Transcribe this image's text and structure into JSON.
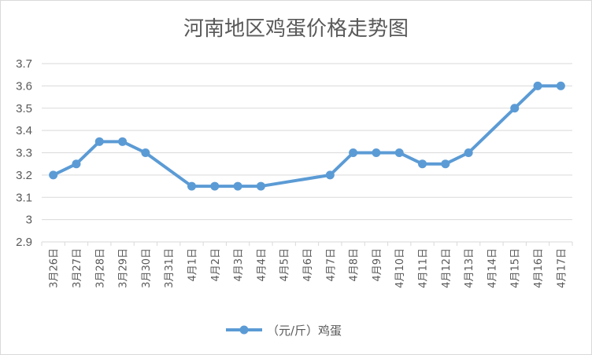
{
  "chart_data": {
    "type": "line",
    "title": "河南地区鸡蛋价格走势图",
    "categories": [
      "3月26日",
      "3月27日",
      "3月28日",
      "3月29日",
      "3月30日",
      "3月31日",
      "4月1日",
      "4月2日",
      "4月3日",
      "4月4日",
      "4月5日",
      "4月6日",
      "4月7日",
      "4月8日",
      "4月9日",
      "4月10日",
      "4月11日",
      "4月12日",
      "4月13日",
      "4月14日",
      "4月15日",
      "4月16日",
      "4月17日"
    ],
    "series": [
      {
        "name": "（元/斤）鸡蛋",
        "values": [
          3.2,
          3.25,
          3.35,
          3.35,
          3.3,
          null,
          3.15,
          3.15,
          3.15,
          3.15,
          null,
          null,
          3.2,
          3.3,
          3.3,
          3.3,
          3.25,
          3.25,
          3.3,
          null,
          3.5,
          3.6,
          3.6
        ]
      }
    ],
    "yticks": [
      "3.7",
      "3.6",
      "3.5",
      "3.4",
      "3.3",
      "3.2",
      "3.1",
      "3",
      "2.9"
    ],
    "ylim": [
      2.9,
      3.7
    ],
    "grid": true,
    "legend": "bottom",
    "line_color": "#5b9bd5",
    "grid_color": "#d9d9d9",
    "xlabel": "",
    "ylabel": ""
  }
}
